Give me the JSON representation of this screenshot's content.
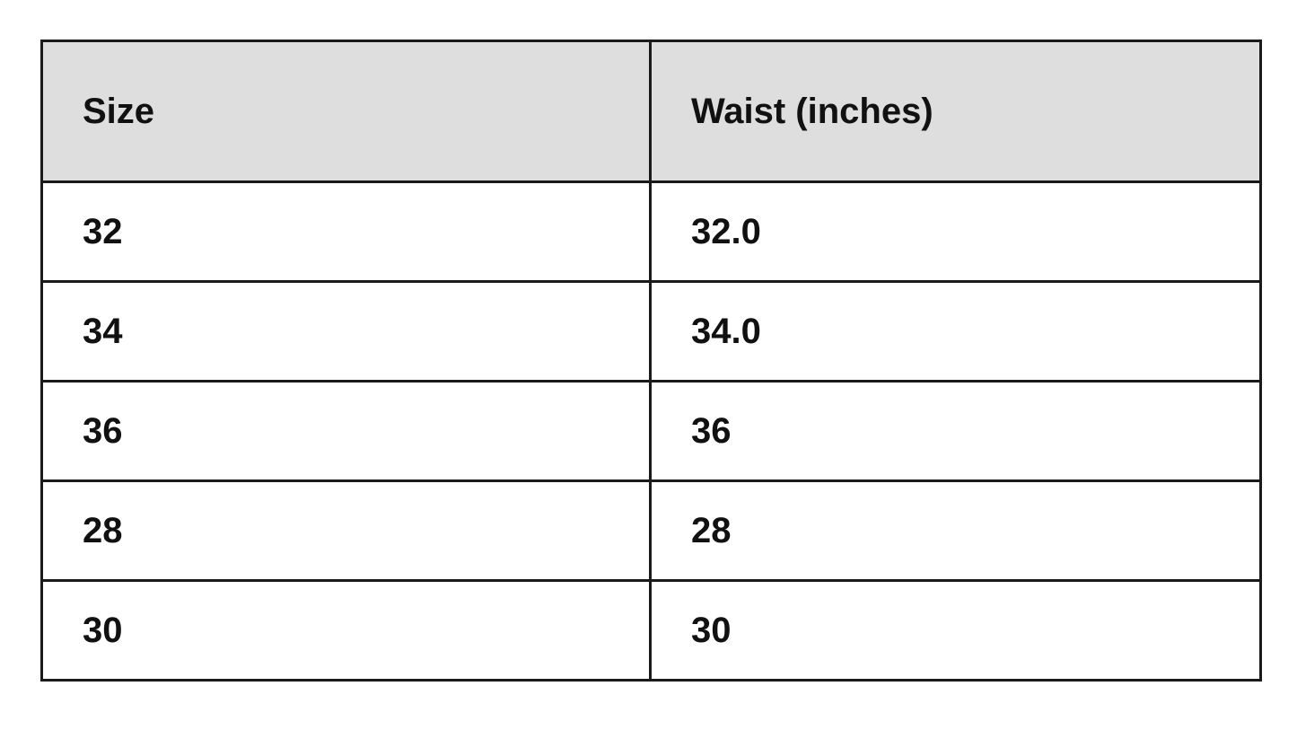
{
  "table": {
    "headers": [
      "Size",
      "Waist (inches)"
    ],
    "rows": [
      [
        "32",
        "32.0"
      ],
      [
        "34",
        "34.0"
      ],
      [
        "36",
        "36"
      ],
      [
        "28",
        "28"
      ],
      [
        "30",
        "30"
      ]
    ],
    "header_bg": "#dedede"
  }
}
